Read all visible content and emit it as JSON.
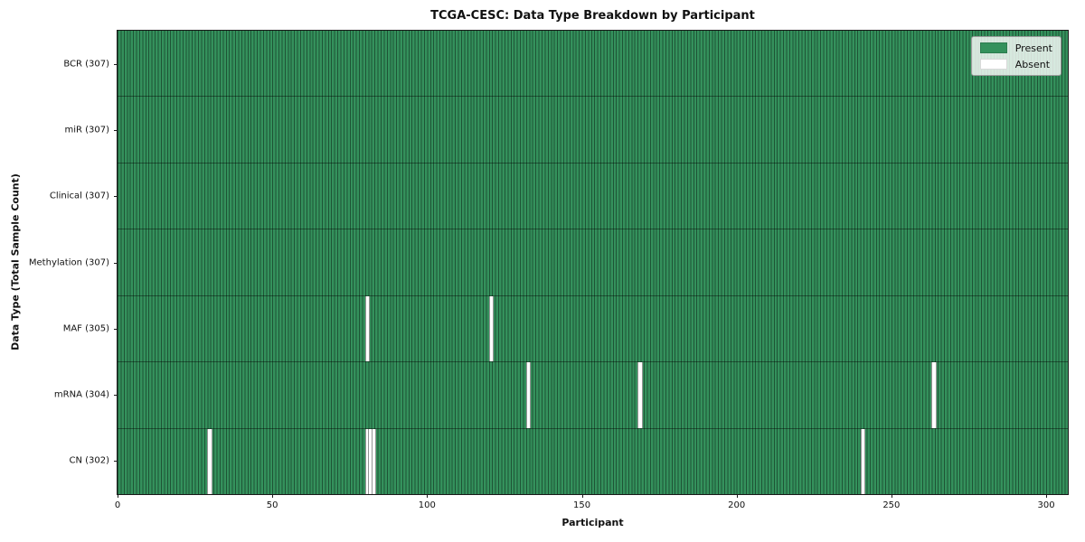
{
  "chart_data": {
    "type": "heatmap",
    "title": "TCGA-CESC: Data Type Breakdown by Participant",
    "xlabel": "Participant",
    "ylabel": "Data Type (Total Sample Count)",
    "n_participants": 307,
    "xlim": [
      0,
      307
    ],
    "x_ticks": [
      0,
      50,
      100,
      150,
      200,
      250,
      300
    ],
    "rows": [
      {
        "label": "BCR (307)",
        "data_type": "BCR",
        "count": 307,
        "absent": []
      },
      {
        "label": "miR (307)",
        "data_type": "miR",
        "count": 307,
        "absent": []
      },
      {
        "label": "Clinical (307)",
        "data_type": "Clinical",
        "count": 307,
        "absent": []
      },
      {
        "label": "Methylation (307)",
        "data_type": "Methylation",
        "count": 307,
        "absent": []
      },
      {
        "label": "MAF (305)",
        "data_type": "MAF",
        "count": 305,
        "absent": [
          80,
          120
        ]
      },
      {
        "label": "mRNA (304)",
        "data_type": "mRNA",
        "count": 304,
        "absent": [
          132,
          168,
          263
        ]
      },
      {
        "label": "CN (302)",
        "data_type": "CN",
        "count": 302,
        "absent": [
          29,
          80,
          81,
          82,
          240
        ]
      }
    ],
    "legend": [
      {
        "label": "Present",
        "color": "#34915c"
      },
      {
        "label": "Absent",
        "color": "#ffffff"
      }
    ],
    "colors": {
      "present": "#34915c",
      "absent": "#ffffff",
      "grid": "rgba(0,0,0,0.42)"
    },
    "layout": {
      "grid_on": true,
      "legend_position": "upper right"
    }
  }
}
